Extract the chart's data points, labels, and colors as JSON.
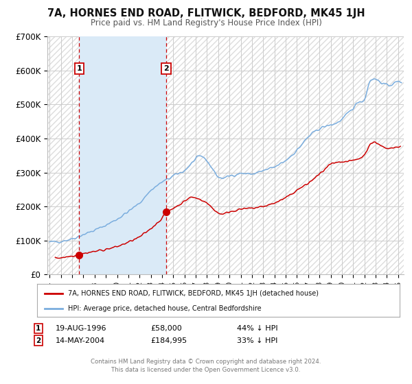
{
  "title": "7A, HORNES END ROAD, FLITWICK, BEDFORD, MK45 1JH",
  "subtitle": "Price paid vs. HM Land Registry's House Price Index (HPI)",
  "ylim": [
    0,
    700000
  ],
  "xlim_start": 1993.8,
  "xlim_end": 2025.5,
  "yticks": [
    0,
    100000,
    200000,
    300000,
    400000,
    500000,
    600000,
    700000
  ],
  "ytick_labels": [
    "£0",
    "£100K",
    "£200K",
    "£300K",
    "£400K",
    "£500K",
    "£600K",
    "£700K"
  ],
  "xtick_years": [
    1994,
    1995,
    1996,
    1997,
    1998,
    1999,
    2000,
    2001,
    2002,
    2003,
    2004,
    2005,
    2006,
    2007,
    2008,
    2009,
    2010,
    2011,
    2012,
    2013,
    2014,
    2015,
    2016,
    2017,
    2018,
    2019,
    2020,
    2021,
    2022,
    2023,
    2024,
    2025
  ],
  "sale1_x": 1996.63,
  "sale1_y": 58000,
  "sale1_label": "1",
  "sale1_date": "19-AUG-1996",
  "sale1_price": "£58,000",
  "sale1_hpi": "44% ↓ HPI",
  "sale2_x": 2004.37,
  "sale2_y": 184995,
  "sale2_label": "2",
  "sale2_date": "14-MAY-2004",
  "sale2_price": "£184,995",
  "sale2_hpi": "33% ↓ HPI",
  "shade_start": 1996.63,
  "shade_end": 2004.37,
  "red_line_color": "#cc0000",
  "blue_line_color": "#7aadde",
  "shade_color": "#daeaf7",
  "hatch_color": "#dddddd",
  "grid_color": "#cccccc",
  "bg_color": "#ffffff",
  "legend_line1": "7A, HORNES END ROAD, FLITWICK, BEDFORD, MK45 1JH (detached house)",
  "legend_line2": "HPI: Average price, detached house, Central Bedfordshire",
  "footer1": "Contains HM Land Registry data © Crown copyright and database right 2024.",
  "footer2": "This data is licensed under the Open Government Licence v3.0."
}
